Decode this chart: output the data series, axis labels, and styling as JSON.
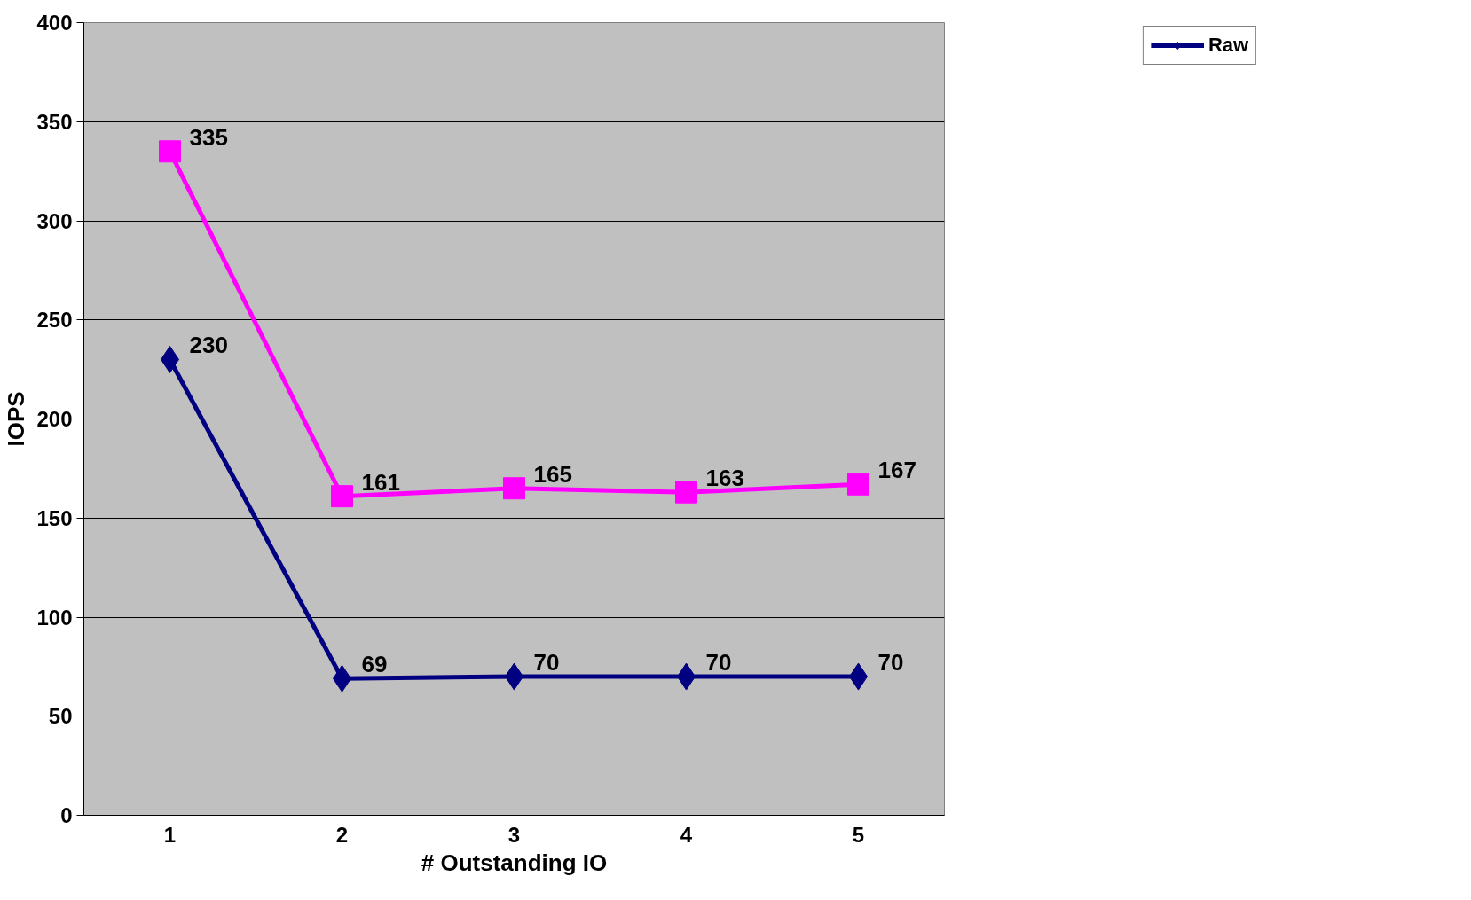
{
  "chart_data": {
    "type": "line",
    "xlabel": "# Outstanding IO",
    "ylabel": "IOPS",
    "categories": [
      "1",
      "2",
      "3",
      "4",
      "5"
    ],
    "series": [
      {
        "name": "Raw",
        "color": "#000080",
        "marker": "diamond",
        "values": [
          230,
          69,
          70,
          70,
          70
        ]
      },
      {
        "color": "#ff00ff",
        "marker": "square",
        "values": [
          335,
          161,
          165,
          163,
          167
        ]
      }
    ],
    "ylim": [
      0,
      400
    ],
    "yticks": [
      0,
      50,
      100,
      150,
      200,
      250,
      300,
      350,
      400
    ],
    "grid": "y",
    "legend": "top right",
    "data_labels": true,
    "line_style": "solid"
  }
}
